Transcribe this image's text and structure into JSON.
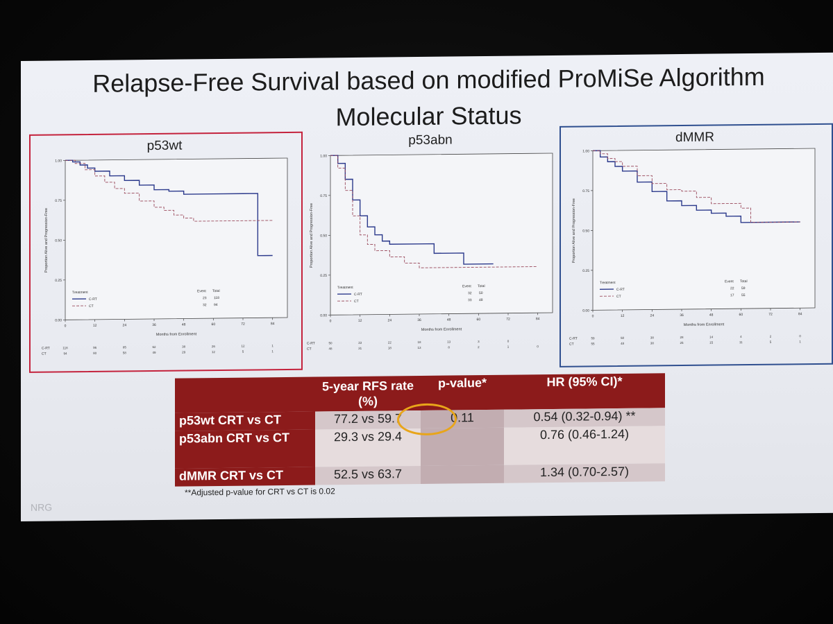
{
  "slide": {
    "title_line1": "Relapse-Free Survival based on modified ProMiSe Algorithm",
    "title_line2": "Molecular Status",
    "footnote": "**Adjusted p-value for CRT vs CT is 0.02",
    "logo": "NRG"
  },
  "colors": {
    "crt": "#2c3a8c",
    "ct": "#9a4a5c",
    "header_red": "#8c1b1b",
    "frame_red": "#c4223c",
    "frame_blue": "#2f4f8f",
    "circle": "#e8a51a"
  },
  "chart_data": [
    {
      "type": "line",
      "title": "p53wt",
      "xlabel": "Months from Enrollment",
      "ylabel": "Proportion Alive and Progression-Free",
      "xlim": [
        0,
        90
      ],
      "ylim": [
        0,
        1
      ],
      "x_ticks": [
        "0",
        "12",
        "24",
        "36",
        "48",
        "60",
        "72",
        "84"
      ],
      "y_ticks": [
        "0.00",
        "0.25",
        "0.50",
        "0.75",
        "1.00"
      ],
      "legend": {
        "title": "Treatment",
        "event_header": "Event",
        "total_header": "Total",
        "rows": [
          {
            "name": "C-RT",
            "event": "23",
            "total": "118"
          },
          {
            "name": "CT",
            "event": "32",
            "total": "94"
          }
        ]
      },
      "series": [
        {
          "name": "C-RT",
          "style": "solid",
          "points": [
            [
              0,
              1
            ],
            [
              3,
              0.99
            ],
            [
              6,
              0.97
            ],
            [
              9,
              0.95
            ],
            [
              12,
              0.93
            ],
            [
              18,
              0.9
            ],
            [
              24,
              0.87
            ],
            [
              30,
              0.84
            ],
            [
              36,
              0.81
            ],
            [
              42,
              0.8
            ],
            [
              48,
              0.78
            ],
            [
              60,
              0.78
            ],
            [
              72,
              0.78
            ],
            [
              78,
              0.78
            ],
            [
              78,
              0.39
            ],
            [
              84,
              0.39
            ]
          ]
        },
        {
          "name": "CT",
          "style": "dashed",
          "points": [
            [
              0,
              1
            ],
            [
              4,
              0.98
            ],
            [
              8,
              0.94
            ],
            [
              12,
              0.9
            ],
            [
              16,
              0.86
            ],
            [
              20,
              0.82
            ],
            [
              24,
              0.79
            ],
            [
              30,
              0.74
            ],
            [
              36,
              0.7
            ],
            [
              40,
              0.68
            ],
            [
              44,
              0.65
            ],
            [
              48,
              0.63
            ],
            [
              52,
              0.61
            ],
            [
              60,
              0.61
            ],
            [
              72,
              0.61
            ],
            [
              84,
              0.61
            ]
          ]
        }
      ],
      "risk_table": {
        "rows": [
          {
            "label": "C-RT",
            "values": [
              "118",
              "96",
              "85",
              "62",
              "38",
              "26",
              "12",
              "1"
            ]
          },
          {
            "label": "CT",
            "values": [
              "94",
              "80",
              "58",
              "49",
              "29",
              "12",
              "5",
              "1"
            ]
          }
        ]
      }
    },
    {
      "type": "line",
      "title": "p53abn",
      "xlabel": "Months from Enrollment",
      "ylabel": "Proportion Alive and Progression-Free",
      "xlim": [
        0,
        90
      ],
      "ylim": [
        0,
        1
      ],
      "x_ticks": [
        "0",
        "12",
        "24",
        "36",
        "48",
        "60",
        "72",
        "84"
      ],
      "y_ticks": [
        "0.00",
        "0.25",
        "0.50",
        "0.75",
        "1.00"
      ],
      "legend": {
        "title": "Treatment",
        "event_header": "Event",
        "total_header": "Total",
        "rows": [
          {
            "name": "C-RT",
            "event": "32",
            "total": "50"
          },
          {
            "name": "CT",
            "event": "33",
            "total": "48"
          }
        ]
      },
      "series": [
        {
          "name": "C-RT",
          "style": "solid",
          "points": [
            [
              0,
              1
            ],
            [
              3,
              0.95
            ],
            [
              6,
              0.85
            ],
            [
              9,
              0.72
            ],
            [
              12,
              0.62
            ],
            [
              15,
              0.55
            ],
            [
              18,
              0.5
            ],
            [
              21,
              0.46
            ],
            [
              24,
              0.44
            ],
            [
              36,
              0.44
            ],
            [
              42,
              0.38
            ],
            [
              48,
              0.38
            ],
            [
              54,
              0.31
            ],
            [
              66,
              0.31
            ]
          ]
        },
        {
          "name": "CT",
          "style": "dashed",
          "points": [
            [
              0,
              1
            ],
            [
              3,
              0.92
            ],
            [
              6,
              0.78
            ],
            [
              9,
              0.62
            ],
            [
              12,
              0.5
            ],
            [
              15,
              0.44
            ],
            [
              18,
              0.4
            ],
            [
              24,
              0.36
            ],
            [
              30,
              0.32
            ],
            [
              36,
              0.29
            ],
            [
              48,
              0.29
            ],
            [
              60,
              0.29
            ],
            [
              84,
              0.29
            ]
          ]
        }
      ],
      "risk_table": {
        "rows": [
          {
            "label": "C-RT",
            "values": [
              "50",
              "33",
              "22",
              "18",
              "13",
              "3",
              "0",
              ""
            ]
          },
          {
            "label": "CT",
            "values": [
              "48",
              "31",
              "18",
              "13",
              "8",
              "2",
              "1",
              "0"
            ]
          }
        ]
      }
    },
    {
      "type": "line",
      "title": "dMMR",
      "xlabel": "Months from Enrollment",
      "ylabel": "Proportion Alive and Progression-Free",
      "xlim": [
        0,
        90
      ],
      "ylim": [
        0,
        1
      ],
      "x_ticks": [
        "0",
        "12",
        "24",
        "36",
        "48",
        "60",
        "72",
        "84"
      ],
      "y_ticks": [
        "0.00",
        "0.25",
        "0.50",
        "0.75",
        "1.00"
      ],
      "legend": {
        "title": "Treatment",
        "event_header": "Event",
        "total_header": "Total",
        "rows": [
          {
            "name": "C-RT",
            "event": "22",
            "total": "59"
          },
          {
            "name": "CT",
            "event": "17",
            "total": "55"
          }
        ]
      },
      "series": [
        {
          "name": "C-RT",
          "style": "solid",
          "points": [
            [
              0,
              1
            ],
            [
              3,
              0.96
            ],
            [
              6,
              0.93
            ],
            [
              9,
              0.9
            ],
            [
              12,
              0.87
            ],
            [
              18,
              0.8
            ],
            [
              24,
              0.74
            ],
            [
              30,
              0.68
            ],
            [
              36,
              0.65
            ],
            [
              42,
              0.62
            ],
            [
              48,
              0.6
            ],
            [
              54,
              0.58
            ],
            [
              60,
              0.54
            ],
            [
              72,
              0.54
            ],
            [
              84,
              0.54
            ]
          ]
        },
        {
          "name": "CT",
          "style": "dashed",
          "points": [
            [
              0,
              1
            ],
            [
              3,
              0.98
            ],
            [
              6,
              0.95
            ],
            [
              9,
              0.93
            ],
            [
              12,
              0.9
            ],
            [
              18,
              0.84
            ],
            [
              24,
              0.79
            ],
            [
              30,
              0.75
            ],
            [
              36,
              0.74
            ],
            [
              42,
              0.7
            ],
            [
              48,
              0.66
            ],
            [
              60,
              0.63
            ],
            [
              64,
              0.63
            ],
            [
              64,
              0.54
            ],
            [
              84,
              0.54
            ]
          ]
        }
      ],
      "risk_table": {
        "rows": [
          {
            "label": "C-RT",
            "values": [
              "59",
              "50",
              "38",
              "28",
              "14",
              "4",
              "2",
              "0"
            ]
          },
          {
            "label": "CT",
            "values": [
              "55",
              "48",
              "38",
              "25",
              "15",
              "11",
              "5",
              "1"
            ]
          }
        ]
      }
    },
    {
      "type": "table",
      "headers": [
        "",
        "5-year RFS rate (%)",
        "p-value*",
        "HR (95% CI)*"
      ],
      "rows": [
        {
          "label": "p53wt CRT vs CT",
          "rfs": "77.2 vs 59.7",
          "p": "0.11",
          "hr": "0.54 (0.32-0.94) **"
        },
        {
          "label": "p53abn CRT vs CT",
          "rfs": "29.3 vs 29.4",
          "p": "",
          "hr": "0.76 (0.46-1.24)"
        },
        {
          "label": "dMMR CRT vs CT",
          "rfs": "52.5 vs 63.7",
          "p": "",
          "hr": "1.34 (0.70-2.57)"
        }
      ]
    }
  ]
}
